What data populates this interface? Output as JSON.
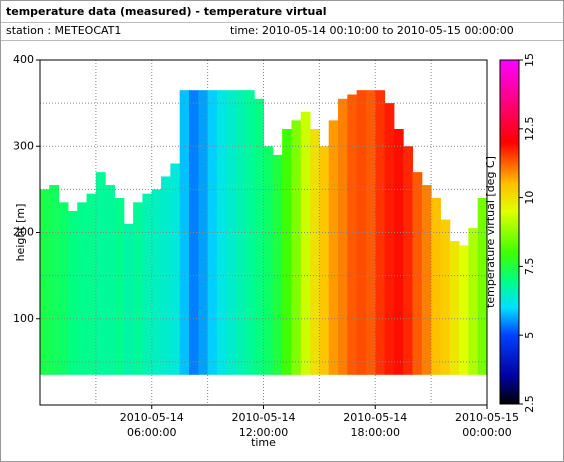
{
  "header": {
    "title": "temperature data (measured) - temperature virtual",
    "station": "station : METEOCAT1",
    "time": "time: 2010-05-14 00:10:00 to 2010-05-15 00:00:00"
  },
  "chart_data": {
    "type": "heatmap",
    "xlabel": "time",
    "ylabel": "height [m]",
    "colorbar_label": "temperature virtual [deg C]",
    "xlim": [
      0,
      24
    ],
    "ylim": [
      0,
      400
    ],
    "xticks": [
      {
        "value": 6,
        "label": [
          "2010-05-14",
          "06:00:00"
        ]
      },
      {
        "value": 12,
        "label": [
          "2010-05-14",
          "12:00:00"
        ]
      },
      {
        "value": 18,
        "label": [
          "2010-05-14",
          "18:00:00"
        ]
      },
      {
        "value": 24,
        "label": [
          "2010-05-15",
          "00:00:00"
        ]
      }
    ],
    "yticks": [
      100,
      200,
      300,
      400
    ],
    "xgrid": [
      3,
      6,
      9,
      12,
      15,
      18,
      21
    ],
    "ygrid": [
      50,
      100,
      150,
      200,
      250,
      300,
      350
    ],
    "clim": [
      2.5,
      15
    ],
    "cticks": [
      2.5,
      5,
      7.5,
      10,
      12.5,
      15
    ],
    "colormap": [
      [
        2.5,
        "#000000"
      ],
      [
        3.5,
        "#0000a0"
      ],
      [
        5,
        "#0040ff"
      ],
      [
        6,
        "#00e0ff"
      ],
      [
        7,
        "#00ff80"
      ],
      [
        8,
        "#40ff00"
      ],
      [
        9.5,
        "#e0ff00"
      ],
      [
        10.5,
        "#ffc000"
      ],
      [
        12,
        "#ff0000"
      ],
      [
        13.5,
        "#ff0080"
      ],
      [
        15,
        "#ff00ff"
      ]
    ],
    "bottom": 35,
    "x": [
      0,
      0.5,
      1,
      1.5,
      2,
      2.5,
      3,
      3.5,
      4,
      4.5,
      5,
      5.5,
      6,
      6.5,
      7,
      7.5,
      8,
      8.5,
      9,
      9.5,
      10,
      10.5,
      11,
      11.5,
      12,
      12.5,
      13,
      13.5,
      14,
      14.5,
      15,
      15.5,
      16,
      16.5,
      17,
      17.5,
      18,
      18.5,
      19,
      19.5,
      20,
      20.5,
      21,
      21.5,
      22,
      22.5,
      23,
      23.5
    ],
    "tops": [
      250,
      255,
      235,
      225,
      235,
      245,
      270,
      255,
      240,
      210,
      235,
      245,
      250,
      265,
      280,
      365,
      365,
      365,
      365,
      365,
      365,
      365,
      365,
      355,
      300,
      290,
      320,
      330,
      340,
      320,
      300,
      330,
      355,
      360,
      365,
      365,
      365,
      350,
      320,
      300,
      270,
      255,
      240,
      215,
      190,
      185,
      205,
      240
    ],
    "values": [
      7.4,
      7.3,
      7.2,
      7.0,
      6.9,
      6.9,
      6.8,
      6.8,
      6.9,
      6.7,
      6.8,
      6.6,
      6.5,
      6.4,
      6.3,
      5.8,
      5.4,
      5.6,
      5.9,
      6.2,
      6.4,
      6.6,
      6.8,
      7.0,
      7.2,
      7.5,
      8.0,
      8.6,
      9.3,
      10.0,
      10.4,
      10.8,
      11.0,
      11.3,
      11.4,
      11.3,
      11.6,
      11.8,
      11.9,
      11.7,
      11.3,
      11.0,
      10.5,
      10.3,
      9.9,
      9.5,
      9.0,
      8.5
    ]
  }
}
